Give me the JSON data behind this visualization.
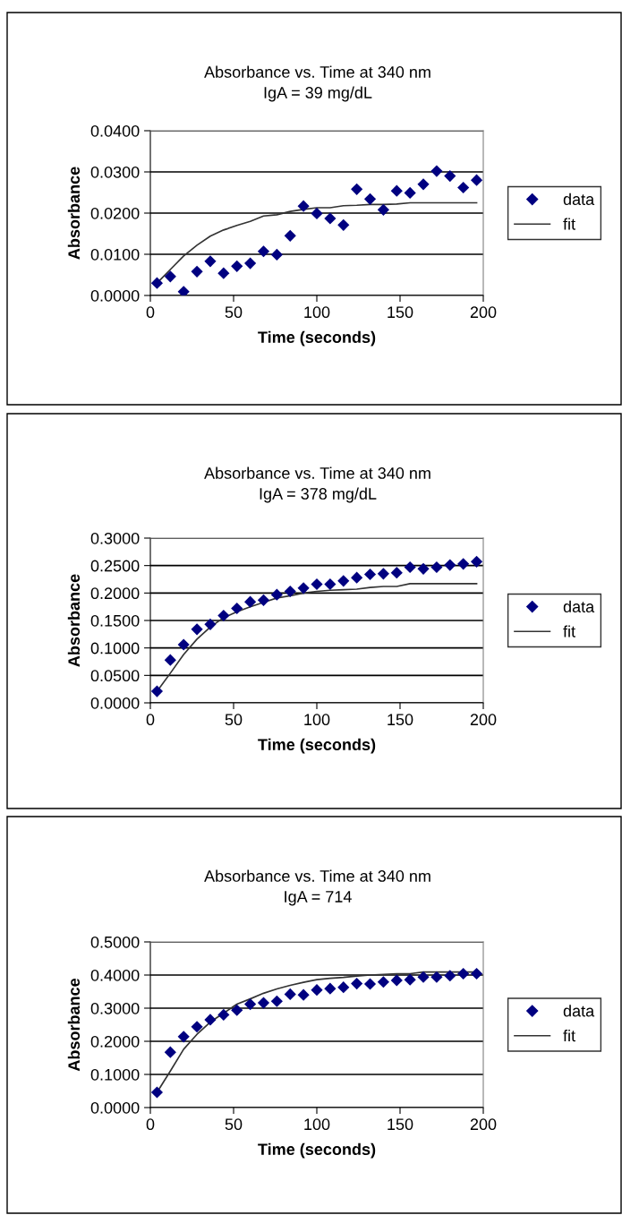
{
  "chart_data": [
    {
      "type": "scatter",
      "title": "Absorbance vs. Time at 340 nm",
      "subtitle": "IgA = 39 mg/dL",
      "xlabel": "Time (seconds)",
      "ylabel": "Absorbance",
      "x": [
        4,
        12,
        20,
        28,
        36,
        44,
        52,
        60,
        68,
        76,
        84,
        92,
        100,
        108,
        116,
        124,
        132,
        140,
        148,
        156,
        164,
        172,
        180,
        188,
        196
      ],
      "series": [
        {
          "name": "data",
          "marker": "diamond",
          "color": "#000080",
          "values": [
            0.003,
            0.0046,
            0.0009,
            0.0058,
            0.0083,
            0.0054,
            0.0071,
            0.0078,
            0.0107,
            0.0099,
            0.0145,
            0.0217,
            0.0199,
            0.0187,
            0.0171,
            0.0258,
            0.0234,
            0.0208,
            0.0254,
            0.0249,
            0.027,
            0.0302,
            0.029,
            0.0262,
            0.028
          ]
        },
        {
          "name": "fit",
          "type": "line",
          "marker": "none",
          "line_style": "solid",
          "color": "#333333",
          "values": [
            0.003,
            0.0063,
            0.0096,
            0.0122,
            0.0144,
            0.0159,
            0.017,
            0.018,
            0.0193,
            0.0196,
            0.0204,
            0.0209,
            0.0213,
            0.0213,
            0.0218,
            0.0219,
            0.0221,
            0.0221,
            0.0222,
            0.0225,
            0.0225,
            0.0225,
            0.0225,
            0.0225,
            0.0225
          ]
        }
      ],
      "xlim": [
        0,
        200
      ],
      "xticks": [
        0,
        50,
        100,
        150,
        200
      ],
      "ylim": [
        0,
        0.04
      ],
      "yticks": [
        {
          "value": 0,
          "label": "0.0000"
        },
        {
          "value": 0.01,
          "label": "0.0100"
        },
        {
          "value": 0.02,
          "label": "0.0200"
        },
        {
          "value": 0.03,
          "label": "0.0300"
        },
        {
          "value": 0.04,
          "label": "0.0400"
        }
      ],
      "grid": "y",
      "legend": "right"
    },
    {
      "type": "scatter",
      "title": "Absorbance vs. Time at 340 nm",
      "subtitle": "IgA = 378 mg/dL",
      "xlabel": "Time (seconds)",
      "ylabel": "Absorbance",
      "x": [
        4,
        12,
        20,
        28,
        36,
        44,
        52,
        60,
        68,
        76,
        84,
        92,
        100,
        108,
        116,
        124,
        132,
        140,
        148,
        156,
        164,
        172,
        180,
        188,
        196
      ],
      "series": [
        {
          "name": "data",
          "marker": "diamond",
          "color": "#000080",
          "values": [
            0.021,
            0.078,
            0.106,
            0.134,
            0.143,
            0.159,
            0.172,
            0.184,
            0.187,
            0.197,
            0.203,
            0.209,
            0.216,
            0.216,
            0.222,
            0.228,
            0.234,
            0.235,
            0.237,
            0.247,
            0.244,
            0.247,
            0.251,
            0.253,
            0.257
          ]
        },
        {
          "name": "fit",
          "type": "line",
          "marker": "none",
          "line_style": "solid",
          "color": "#333333",
          "values": [
            0.021,
            0.054,
            0.088,
            0.116,
            0.138,
            0.155,
            0.166,
            0.175,
            0.183,
            0.191,
            0.195,
            0.2,
            0.203,
            0.205,
            0.206,
            0.207,
            0.21,
            0.212,
            0.212,
            0.217,
            0.217,
            0.217,
            0.217,
            0.217,
            0.217
          ]
        }
      ],
      "xlim": [
        0,
        200
      ],
      "xticks": [
        0,
        50,
        100,
        150,
        200
      ],
      "ylim": [
        0,
        0.3
      ],
      "yticks": [
        {
          "value": 0,
          "label": "0.0000"
        },
        {
          "value": 0.05,
          "label": "0.0500"
        },
        {
          "value": 0.1,
          "label": "0.1000"
        },
        {
          "value": 0.15,
          "label": "0.1500"
        },
        {
          "value": 0.2,
          "label": "0.2000"
        },
        {
          "value": 0.25,
          "label": "0.2500"
        },
        {
          "value": 0.3,
          "label": "0.3000"
        }
      ],
      "grid": "y",
      "legend": "right"
    },
    {
      "type": "scatter",
      "title": "Absorbance vs. Time at 340 nm",
      "subtitle": "IgA = 714",
      "xlabel": "Time (seconds)",
      "ylabel": "Absorbance",
      "x": [
        4,
        12,
        20,
        28,
        36,
        44,
        52,
        60,
        68,
        76,
        84,
        92,
        100,
        108,
        116,
        124,
        132,
        140,
        148,
        156,
        164,
        172,
        180,
        188,
        196
      ],
      "series": [
        {
          "name": "data",
          "marker": "diamond",
          "color": "#000080",
          "values": [
            0.046,
            0.167,
            0.214,
            0.244,
            0.265,
            0.28,
            0.294,
            0.312,
            0.316,
            0.321,
            0.342,
            0.34,
            0.355,
            0.359,
            0.363,
            0.374,
            0.373,
            0.379,
            0.384,
            0.386,
            0.394,
            0.394,
            0.398,
            0.404,
            0.404
          ]
        },
        {
          "name": "fit",
          "type": "line",
          "marker": "none",
          "line_style": "solid",
          "color": "#333333",
          "values": [
            0.046,
            0.11,
            0.176,
            0.221,
            0.258,
            0.285,
            0.312,
            0.328,
            0.345,
            0.358,
            0.369,
            0.378,
            0.386,
            0.39,
            0.393,
            0.397,
            0.4,
            0.402,
            0.404,
            0.404,
            0.409,
            0.409,
            0.409,
            0.409,
            0.409
          ]
        }
      ],
      "xlim": [
        0,
        200
      ],
      "xticks": [
        0,
        50,
        100,
        150,
        200
      ],
      "ylim": [
        0,
        0.5
      ],
      "yticks": [
        {
          "value": 0,
          "label": "0.0000"
        },
        {
          "value": 0.1,
          "label": "0.1000"
        },
        {
          "value": 0.2,
          "label": "0.2000"
        },
        {
          "value": 0.3,
          "label": "0.3000"
        },
        {
          "value": 0.4,
          "label": "0.4000"
        },
        {
          "value": 0.5,
          "label": "0.5000"
        }
      ],
      "grid": "y",
      "legend": "right"
    }
  ]
}
